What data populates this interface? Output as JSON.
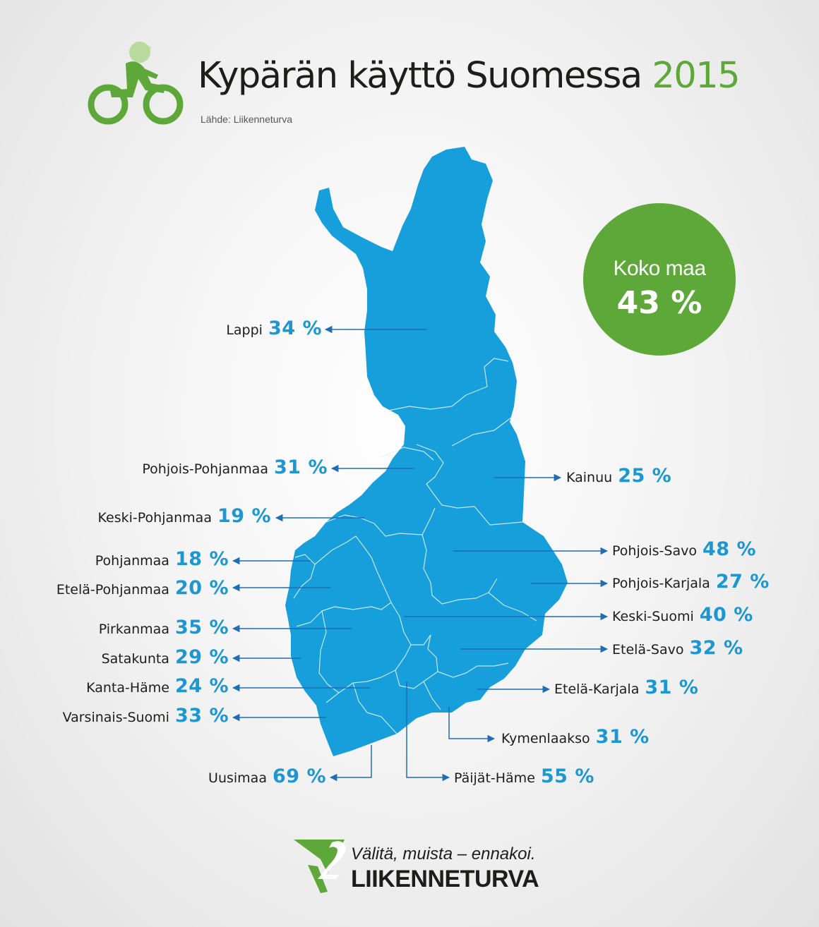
{
  "header": {
    "title": "Kypärän käyttö Suomessa",
    "year": "2015",
    "source": "Lähde: Liikenneturva"
  },
  "colors": {
    "map_fill": "#169fdb",
    "value_text": "#1c97d3",
    "green": "#5ea83a",
    "arrow": "#1f6db5"
  },
  "country_total": {
    "label": "Koko maa",
    "value": "43 %"
  },
  "regions": [
    {
      "name": "Lappi",
      "value": "34 %"
    },
    {
      "name": "Pohjois-Pohjanmaa",
      "value": "31 %"
    },
    {
      "name": "Keski-Pohjanmaa",
      "value": "19 %"
    },
    {
      "name": "Pohjanmaa",
      "value": "18 %"
    },
    {
      "name": "Etelä-Pohjanmaa",
      "value": "20 %"
    },
    {
      "name": "Pirkanmaa",
      "value": "35 %"
    },
    {
      "name": "Satakunta",
      "value": "29 %"
    },
    {
      "name": "Kanta-Häme",
      "value": "24 %"
    },
    {
      "name": "Varsinais-Suomi",
      "value": "33 %"
    },
    {
      "name": "Uusimaa",
      "value": "69 %"
    },
    {
      "name": "Päijät-Häme",
      "value": "55 %"
    },
    {
      "name": "Kymenlaakso",
      "value": "31 %"
    },
    {
      "name": "Etelä-Karjala",
      "value": "31 %"
    },
    {
      "name": "Etelä-Savo",
      "value": "32 %"
    },
    {
      "name": "Keski-Suomi",
      "value": "40 %"
    },
    {
      "name": "Pohjois-Karjala",
      "value": "27 %"
    },
    {
      "name": "Pohjois-Savo",
      "value": "48 %"
    },
    {
      "name": "Kainuu",
      "value": "25 %"
    }
  ],
  "footer": {
    "slogan": "Välitä, muista – ennakoi.",
    "brand": "LIIKENNETURVA"
  }
}
